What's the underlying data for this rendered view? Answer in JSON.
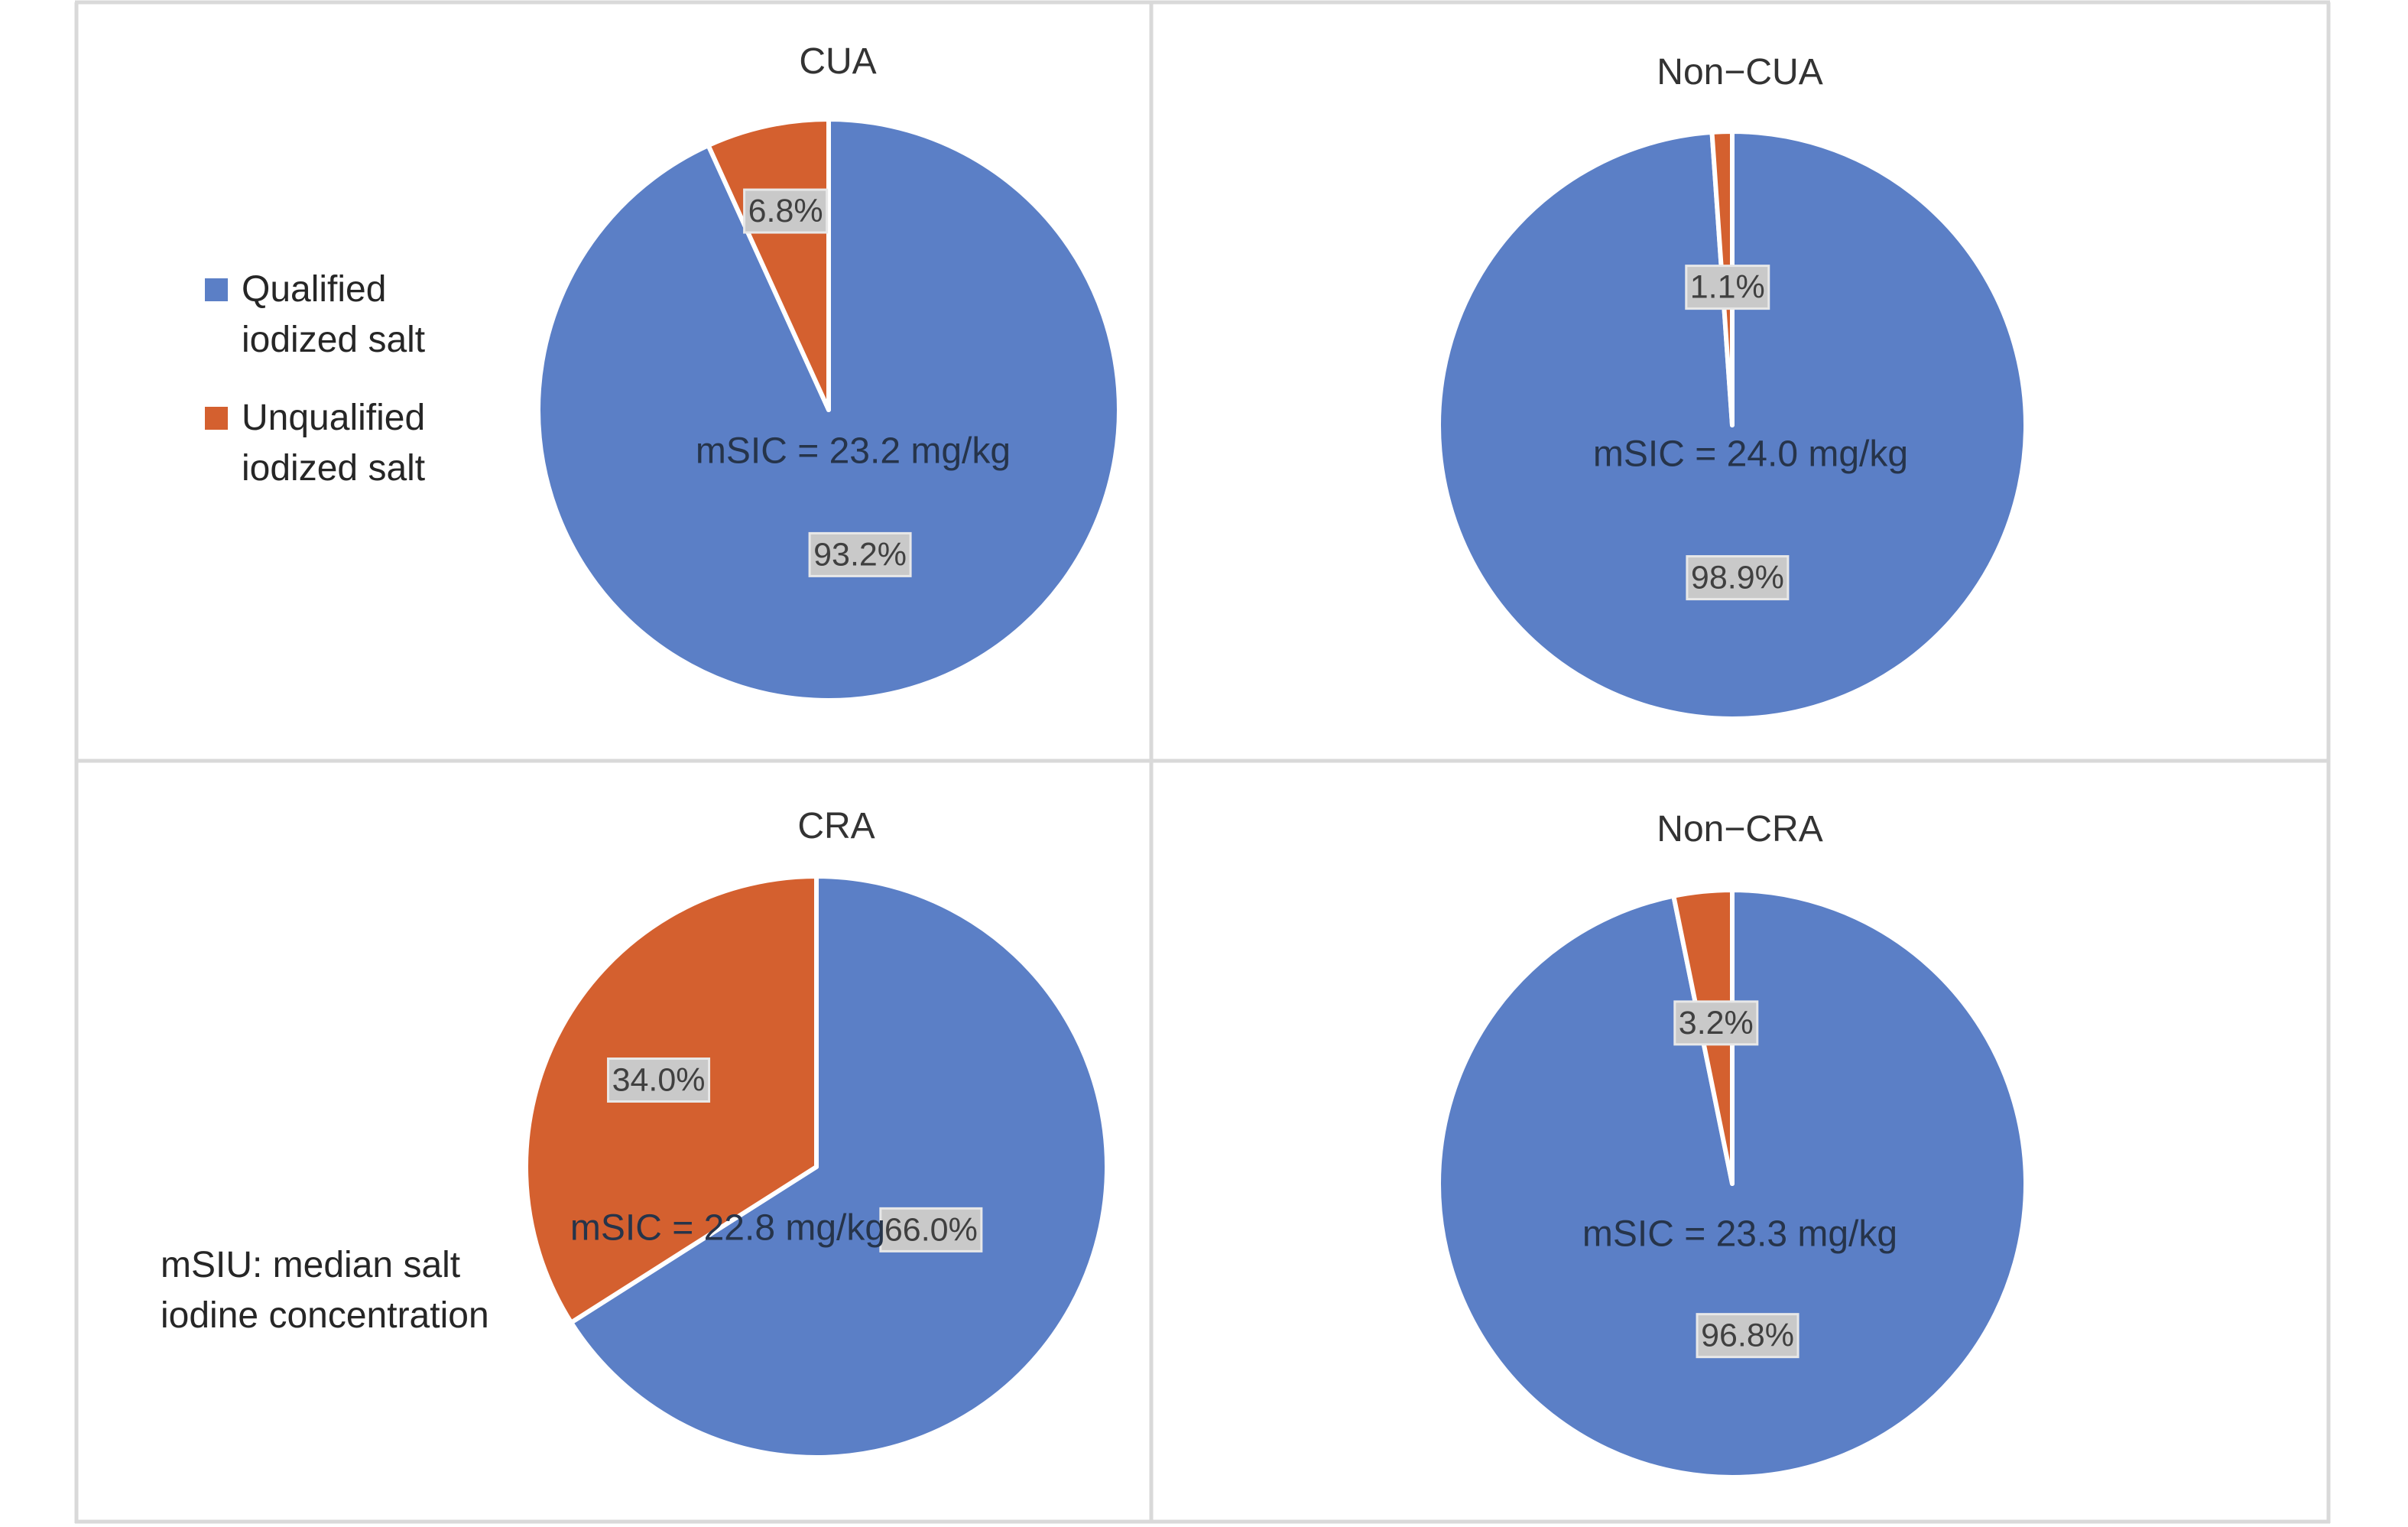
{
  "colors": {
    "qualified": "#5b7fc6",
    "unqualified": "#d4602f"
  },
  "legend": {
    "items": [
      {
        "lines": [
          "Qualified",
          "iodized salt"
        ],
        "color": "#5b7fc6"
      },
      {
        "lines": [
          "Unqualified",
          "iodized salt"
        ],
        "color": "#d4602f"
      }
    ]
  },
  "note": {
    "lines": [
      "mSIU: median salt",
      "iodine concentration"
    ]
  },
  "chart_data": [
    {
      "type": "pie",
      "title": "CUA",
      "annotation": "mSIC = 23.2 mg/kg",
      "categories": [
        "Qualified iodized salt",
        "Unqualified iodized salt"
      ],
      "values": [
        93.2,
        6.8
      ],
      "labels": [
        "93.2%",
        "6.8%"
      ]
    },
    {
      "type": "pie",
      "title": "Non−CUA",
      "annotation": "mSIC = 24.0 mg/kg",
      "categories": [
        "Qualified iodized salt",
        "Unqualified iodized salt"
      ],
      "values": [
        98.9,
        1.1
      ],
      "labels": [
        "98.9%",
        "1.1%"
      ]
    },
    {
      "type": "pie",
      "title": "CRA",
      "annotation": "mSIC = 22.8 mg/kg",
      "categories": [
        "Qualified iodized salt",
        "Unqualified iodized salt"
      ],
      "values": [
        66.0,
        34.0
      ],
      "labels": [
        "66.0%",
        "34.0%"
      ]
    },
    {
      "type": "pie",
      "title": "Non−CRA",
      "annotation": "mSIC = 23.3 mg/kg",
      "categories": [
        "Qualified iodized salt",
        "Unqualified iodized salt"
      ],
      "values": [
        96.8,
        3.2
      ],
      "labels": [
        "96.8%",
        "3.2%"
      ]
    }
  ]
}
